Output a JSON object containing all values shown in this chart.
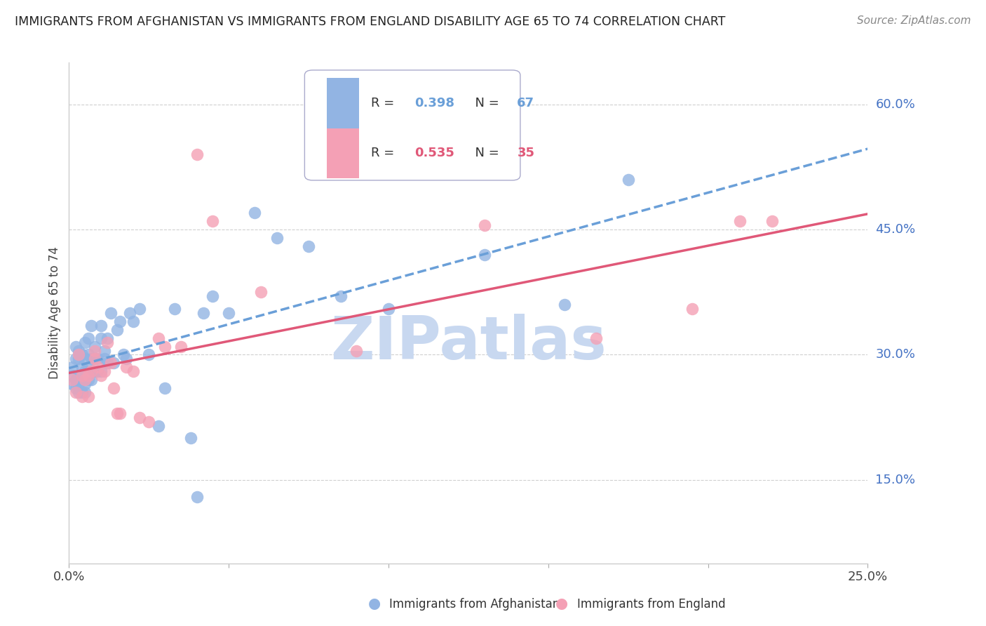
{
  "title": "IMMIGRANTS FROM AFGHANISTAN VS IMMIGRANTS FROM ENGLAND DISABILITY AGE 65 TO 74 CORRELATION CHART",
  "source": "Source: ZipAtlas.com",
  "ylabel": "Disability Age 65 to 74",
  "x_min": 0.0,
  "x_max": 0.25,
  "y_min": 0.05,
  "y_max": 0.65,
  "y_ticks": [
    0.15,
    0.3,
    0.45,
    0.6
  ],
  "y_tick_labels": [
    "15.0%",
    "30.0%",
    "45.0%",
    "60.0%"
  ],
  "x_ticks": [
    0.0,
    0.05,
    0.1,
    0.15,
    0.2,
    0.25
  ],
  "x_tick_labels": [
    "0.0%",
    "",
    "",
    "",
    "",
    "25.0%"
  ],
  "afghanistan_R": 0.398,
  "afghanistan_N": 67,
  "england_R": 0.535,
  "england_N": 35,
  "afghanistan_color": "#92b4e3",
  "england_color": "#f4a0b5",
  "afghanistan_line_color": "#6a9fd8",
  "england_line_color": "#e05878",
  "watermark": "ZIPatlas",
  "watermark_color": "#c8d8f0",
  "background_color": "#ffffff",
  "grid_color": "#d0d0d0",
  "title_color": "#222222",
  "right_axis_color": "#4472c4",
  "afghanistan_scatter_x": [
    0.001,
    0.001,
    0.001,
    0.002,
    0.002,
    0.002,
    0.002,
    0.003,
    0.003,
    0.003,
    0.003,
    0.003,
    0.004,
    0.004,
    0.004,
    0.004,
    0.005,
    0.005,
    0.005,
    0.005,
    0.005,
    0.006,
    0.006,
    0.006,
    0.006,
    0.007,
    0.007,
    0.007,
    0.007,
    0.008,
    0.008,
    0.008,
    0.009,
    0.009,
    0.01,
    0.01,
    0.01,
    0.011,
    0.011,
    0.012,
    0.012,
    0.013,
    0.014,
    0.015,
    0.016,
    0.017,
    0.018,
    0.019,
    0.02,
    0.022,
    0.025,
    0.028,
    0.03,
    0.033,
    0.038,
    0.04,
    0.042,
    0.045,
    0.05,
    0.058,
    0.065,
    0.075,
    0.085,
    0.1,
    0.13,
    0.155,
    0.175
  ],
  "afghanistan_scatter_y": [
    0.285,
    0.275,
    0.265,
    0.31,
    0.295,
    0.27,
    0.26,
    0.305,
    0.295,
    0.275,
    0.265,
    0.255,
    0.3,
    0.285,
    0.27,
    0.255,
    0.315,
    0.295,
    0.28,
    0.265,
    0.255,
    0.32,
    0.3,
    0.285,
    0.27,
    0.335,
    0.295,
    0.28,
    0.27,
    0.31,
    0.295,
    0.28,
    0.295,
    0.28,
    0.335,
    0.32,
    0.28,
    0.305,
    0.295,
    0.32,
    0.29,
    0.35,
    0.29,
    0.33,
    0.34,
    0.3,
    0.295,
    0.35,
    0.34,
    0.355,
    0.3,
    0.215,
    0.26,
    0.355,
    0.2,
    0.13,
    0.35,
    0.37,
    0.35,
    0.47,
    0.44,
    0.43,
    0.37,
    0.355,
    0.42,
    0.36,
    0.51
  ],
  "england_scatter_x": [
    0.001,
    0.002,
    0.003,
    0.004,
    0.004,
    0.005,
    0.006,
    0.006,
    0.007,
    0.008,
    0.008,
    0.009,
    0.01,
    0.011,
    0.012,
    0.013,
    0.014,
    0.015,
    0.016,
    0.018,
    0.02,
    0.022,
    0.025,
    0.028,
    0.03,
    0.035,
    0.04,
    0.045,
    0.06,
    0.09,
    0.13,
    0.165,
    0.195,
    0.21,
    0.22
  ],
  "england_scatter_y": [
    0.27,
    0.255,
    0.3,
    0.275,
    0.25,
    0.27,
    0.275,
    0.25,
    0.28,
    0.305,
    0.295,
    0.285,
    0.275,
    0.28,
    0.315,
    0.29,
    0.26,
    0.23,
    0.23,
    0.285,
    0.28,
    0.225,
    0.22,
    0.32,
    0.31,
    0.31,
    0.54,
    0.46,
    0.375,
    0.305,
    0.455,
    0.32,
    0.355,
    0.46,
    0.46
  ]
}
